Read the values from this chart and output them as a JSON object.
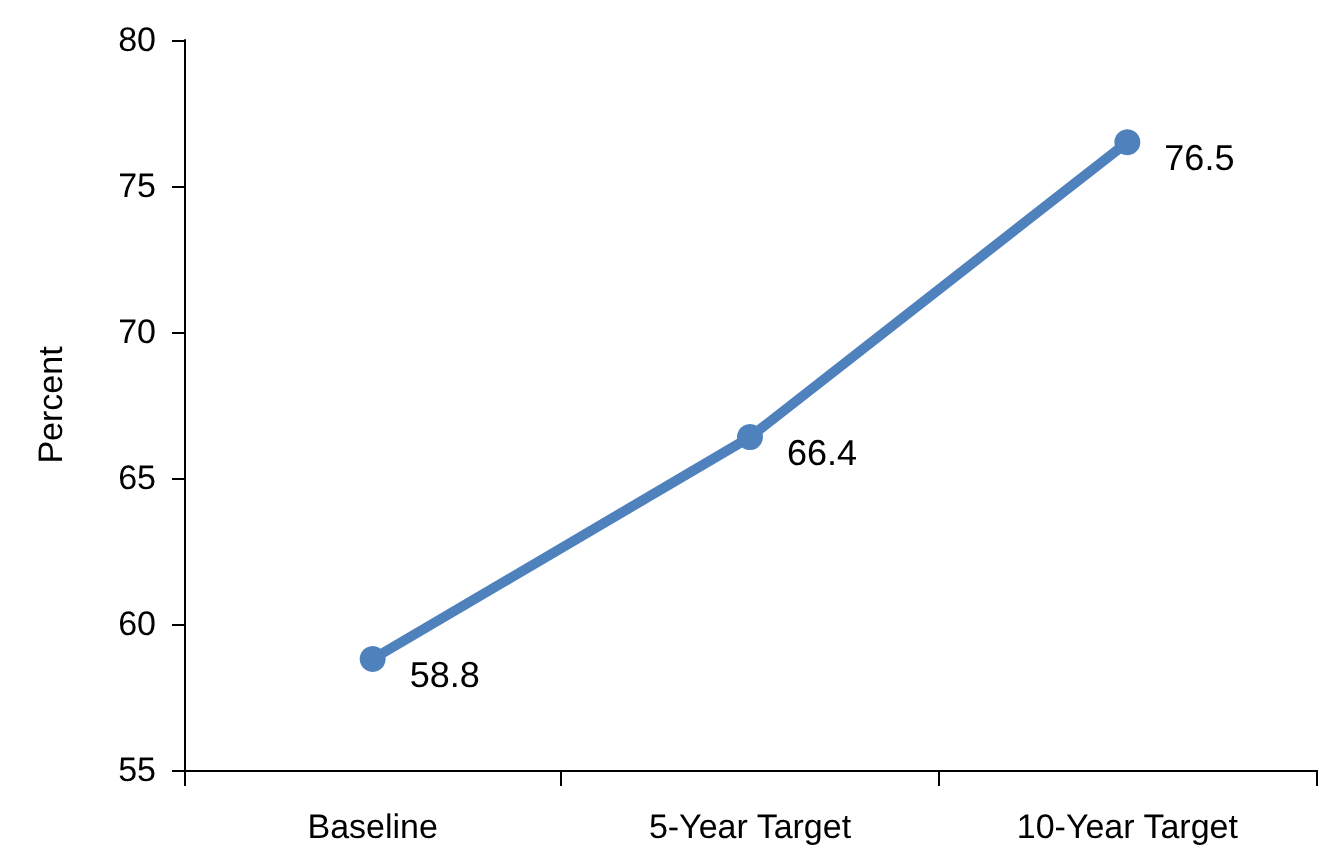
{
  "chart_data": {
    "type": "line",
    "ylabel": "Percent",
    "categories": [
      "Baseline",
      "5-Year Target",
      "10-Year Target"
    ],
    "series": [
      {
        "color": "#4f81bd",
        "values": [
          58.8,
          66.4,
          76.5
        ]
      }
    ],
    "ylim": [
      55,
      80
    ],
    "yticks": [
      55,
      60,
      65,
      70,
      75,
      80
    ],
    "grid": false,
    "marker": "circle",
    "line_style": "solid",
    "data_labels": true
  }
}
